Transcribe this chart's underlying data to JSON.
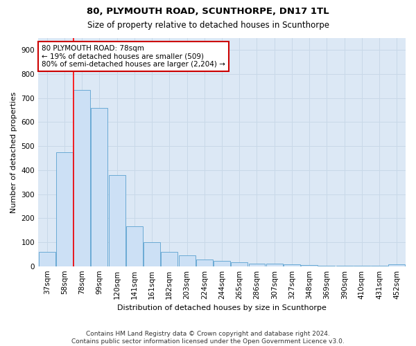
{
  "title": "80, PLYMOUTH ROAD, SCUNTHORPE, DN17 1TL",
  "subtitle": "Size of property relative to detached houses in Scunthorpe",
  "xlabel": "Distribution of detached houses by size in Scunthorpe",
  "ylabel": "Number of detached properties",
  "categories": [
    "37sqm",
    "58sqm",
    "78sqm",
    "99sqm",
    "120sqm",
    "141sqm",
    "161sqm",
    "182sqm",
    "203sqm",
    "224sqm",
    "244sqm",
    "265sqm",
    "286sqm",
    "307sqm",
    "327sqm",
    "348sqm",
    "369sqm",
    "390sqm",
    "410sqm",
    "431sqm",
    "452sqm"
  ],
  "values": [
    60,
    475,
    735,
    660,
    380,
    165,
    100,
    60,
    45,
    28,
    22,
    15,
    12,
    10,
    8,
    5,
    3,
    2,
    2,
    1,
    8
  ],
  "bar_color": "#cce0f5",
  "bar_edge_color": "#6aaad4",
  "red_line_index": 2,
  "annotation_text": "80 PLYMOUTH ROAD: 78sqm\n← 19% of detached houses are smaller (509)\n80% of semi-detached houses are larger (2,204) →",
  "annotation_box_color": "#ffffff",
  "annotation_box_edge_color": "#cc0000",
  "ylim": [
    0,
    950
  ],
  "yticks": [
    0,
    100,
    200,
    300,
    400,
    500,
    600,
    700,
    800,
    900
  ],
  "grid_color": "#c8d8e8",
  "bg_color": "#dce8f5",
  "fig_bg_color": "#ffffff",
  "footer": "Contains HM Land Registry data © Crown copyright and database right 2024.\nContains public sector information licensed under the Open Government Licence v3.0.",
  "title_fontsize": 9.5,
  "subtitle_fontsize": 8.5,
  "xlabel_fontsize": 8,
  "ylabel_fontsize": 8,
  "tick_fontsize": 7.5,
  "annotation_fontsize": 7.5,
  "footer_fontsize": 6.5
}
